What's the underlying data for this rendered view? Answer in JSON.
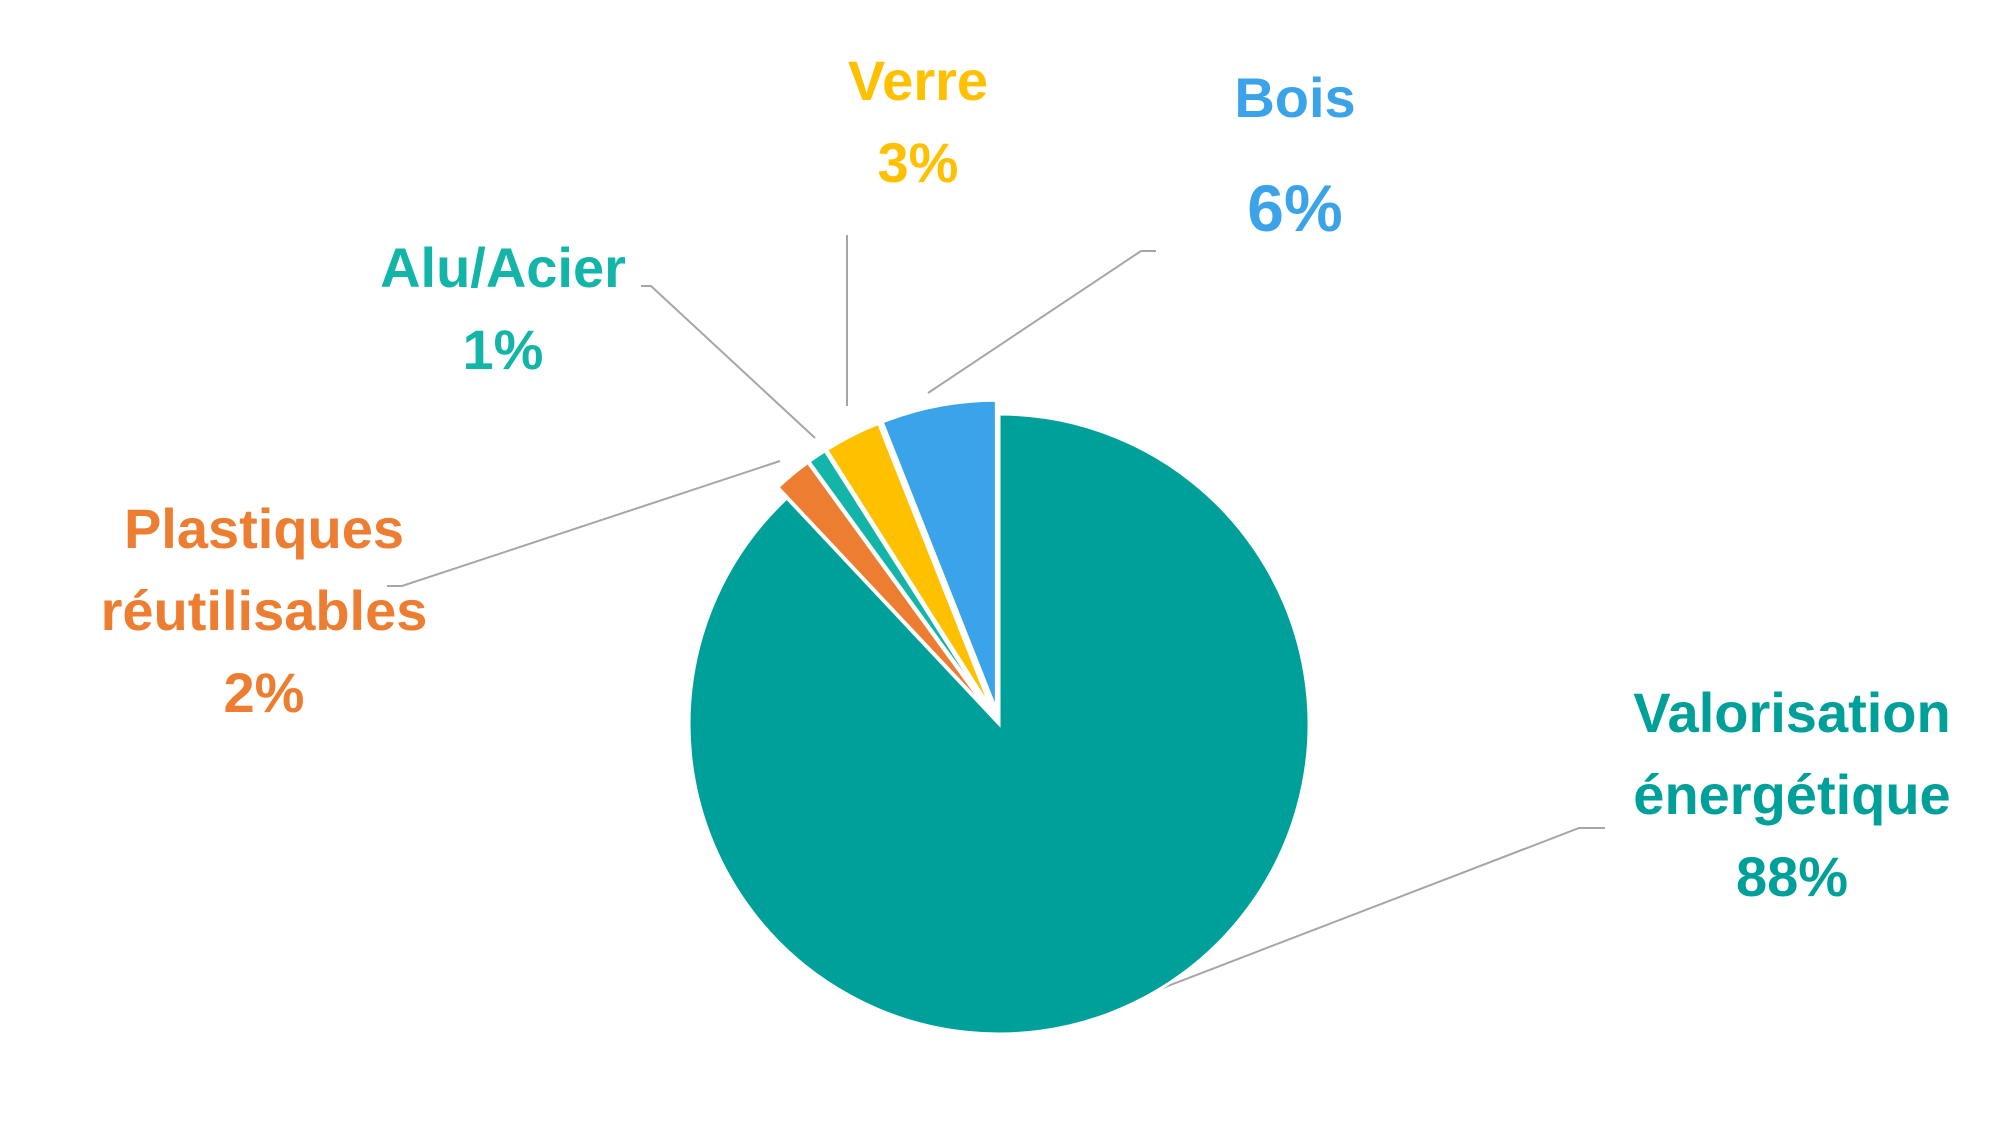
{
  "chart_data": {
    "type": "pie",
    "categories": [
      "Valorisation énergétique",
      "Plastiques réutilisables",
      "Alu/Acier",
      "Verre",
      "Bois"
    ],
    "values": [
      88,
      2,
      1,
      3,
      6
    ],
    "value_labels": [
      "88%",
      "2%",
      "1%",
      "3%",
      "6%"
    ],
    "colors": [
      "#00A09A",
      "#ED7D31",
      "#13B5A8",
      "#FFC000",
      "#3BA3EA"
    ]
  }
}
